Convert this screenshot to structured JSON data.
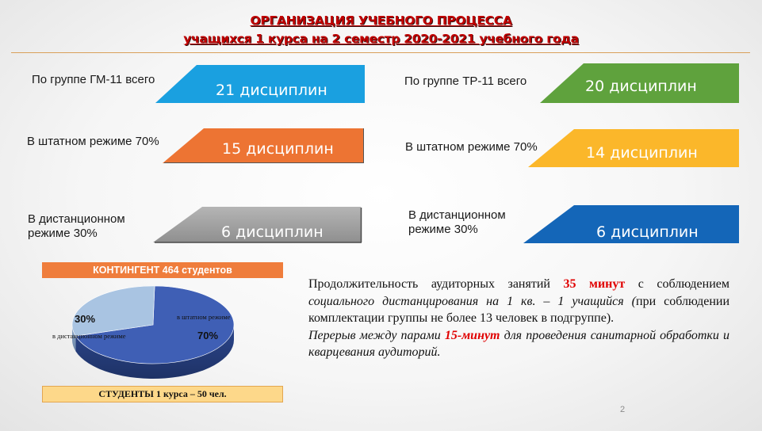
{
  "header": {
    "ghost_text": "ОР",
    "title_line1": "ОРГАНИЗАЦИЯ УЧЕБНОГО ПРОЦЕССА",
    "title_line2": "учащихся 1 курса на 2 семестр 2020-2021 учебного года"
  },
  "left": {
    "row1": {
      "label": "По группе ГМ-11 всего",
      "value": "21 дисциплин"
    },
    "row2": {
      "label": "В штатном режиме 70%",
      "value": "15 дисциплин"
    },
    "row3": {
      "label_line1": "В дистанционном",
      "label_line2": "режиме 30%",
      "value": "6 дисциплин"
    }
  },
  "right": {
    "row1": {
      "label": "По группе ТР-11 всего",
      "value": "20 дисциплин"
    },
    "row2": {
      "label": "В штатном режиме 70%",
      "value": "14 дисциплин"
    },
    "row3": {
      "label_line1": "В дистанционном",
      "label_line2": "режиме 30%",
      "value": "6 дисциплин"
    }
  },
  "contingent": {
    "label": "КОНТИНГЕНТ 464 студентов"
  },
  "chart_data": {
    "type": "pie",
    "categories": [
      "в штатном режиме",
      "в дистанционном режиме"
    ],
    "values": [
      70,
      30
    ],
    "data_labels": [
      "70%",
      "30%"
    ],
    "colors": [
      "#3f5fb5",
      "#a9c4e2"
    ]
  },
  "students": {
    "label": "СТУДЕНТЫ 1 курса – 50  чел."
  },
  "paragraph": {
    "p1_a": "Продолжительность аудиторных занятий ",
    "p1_red": "35 минут",
    "p1_b": " с соблюдением ",
    "p1_it": "социального дистанцирования на 1 кв. – 1 учащийся (",
    "p1_c": "при соблюдении комплектации группы не более 13 человек в подгруппе).",
    "p2_a": "Перерыв между парами ",
    "p2_red": "15-минут",
    "p2_b": " для проведения санитарной обработки и кварцевания аудиторий."
  },
  "page_number": "2",
  "colors": {
    "blue_bar": "#1aa0e0",
    "orange_bar": "#ed7433",
    "gray_bar": "#9a9a9a",
    "green_bar": "#5fa23d",
    "yellow_bar": "#fbb72a",
    "darkblue_bar": "#1466b8",
    "title_red": "#c00000"
  }
}
